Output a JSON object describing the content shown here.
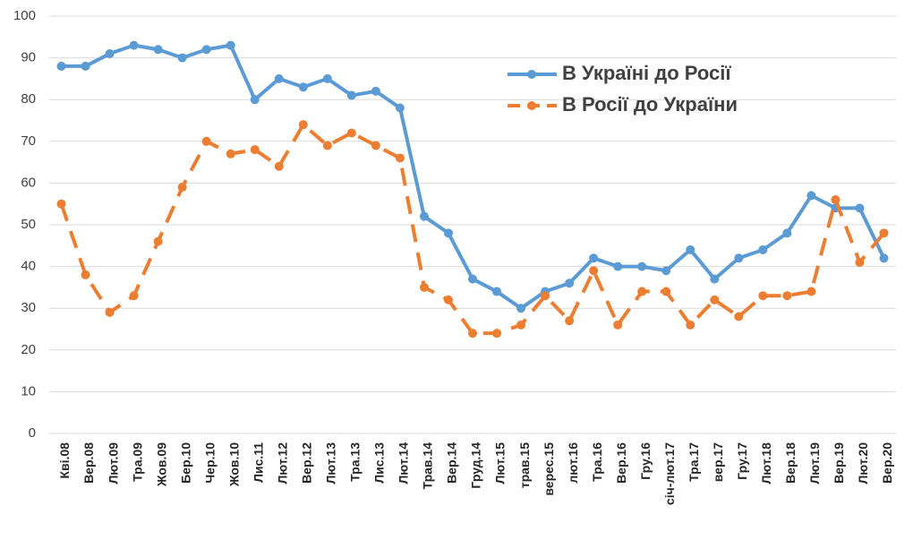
{
  "chart_data": {
    "type": "line",
    "categories": [
      "Кві.08",
      "Вер.08",
      "Лют.09",
      "Тра.09",
      "Жов.09",
      "Бер.10",
      "Чер.10",
      "Жов.10",
      "Лис.11",
      "Лют.12",
      "Вер.12",
      "Лют.13",
      "Тра.13",
      "Лис.13",
      "Лют.14",
      "Трав.14",
      "Вер.14",
      "Груд.14",
      "Лют.15",
      "трав.15",
      "верес.15",
      "лют.16",
      "Тра.16",
      "Вер.16",
      "Гру.16",
      "січ-лют.17",
      "Тра.17",
      "вер.17",
      "Гру.17",
      "Лют.18",
      "Вер.18",
      "Лют.19",
      "Вер.19",
      "Лют.20",
      "Вер.20"
    ],
    "series": [
      {
        "name": "В Україні до Росії",
        "color": "#5b9bd5",
        "dashed": false,
        "values": [
          88,
          88,
          91,
          93,
          92,
          90,
          92,
          93,
          80,
          85,
          83,
          85,
          81,
          82,
          78,
          52,
          48,
          37,
          34,
          30,
          34,
          36,
          42,
          40,
          40,
          39,
          44,
          37,
          42,
          44,
          48,
          57,
          54,
          54,
          42
        ]
      },
      {
        "name": "В Росії до України",
        "color": "#ed7d31",
        "dashed": true,
        "values": [
          55,
          38,
          29,
          33,
          46,
          59,
          70,
          67,
          68,
          64,
          74,
          69,
          72,
          69,
          66,
          35,
          32,
          24,
          24,
          26,
          33,
          27,
          39,
          26,
          34,
          34,
          26,
          32,
          28,
          33,
          33,
          34,
          56,
          41,
          48
        ]
      }
    ],
    "ylim": [
      0,
      100
    ],
    "yticks": [
      0,
      10,
      20,
      30,
      40,
      50,
      60,
      70,
      80,
      90,
      100
    ],
    "grid": true,
    "legend": "top-right"
  }
}
